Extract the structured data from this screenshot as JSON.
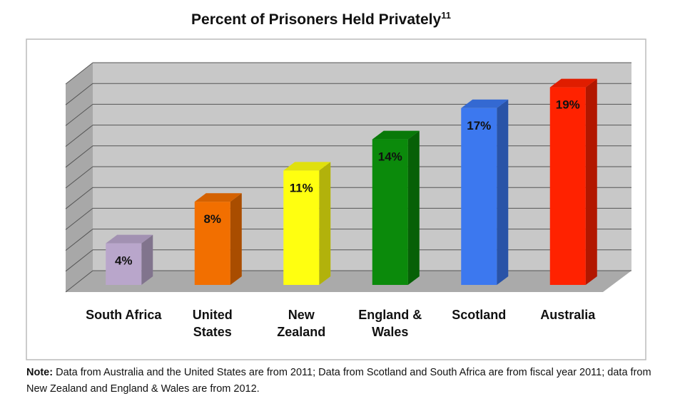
{
  "chart_data": {
    "type": "bar3d",
    "title": "Percent of Prisoners Held Privately",
    "title_footnote": "11",
    "categories": [
      "South Africa",
      "United\nStates",
      "New\nZealand",
      "England &\nWales",
      "Scotland",
      "Australia"
    ],
    "values": [
      4,
      8,
      11,
      14,
      17,
      19
    ],
    "value_labels": [
      "4%",
      "8%",
      "11%",
      "14%",
      "17%",
      "19%"
    ],
    "colors": [
      "#b9a6cb",
      "#f26f00",
      "#ffff10",
      "#0b8a0b",
      "#3c78ef",
      "#ff2200"
    ],
    "ylim": [
      0,
      20
    ],
    "yticks": [
      0,
      2,
      4,
      6,
      8,
      10,
      12,
      14,
      16,
      18,
      20
    ],
    "grid": true,
    "note_label": "Note:",
    "note": "Data from Australia and the United States are from 2011; Data from Scotland and South Africa are from fiscal year 2011; data from New Zealand and England & Wales are from 2012."
  }
}
